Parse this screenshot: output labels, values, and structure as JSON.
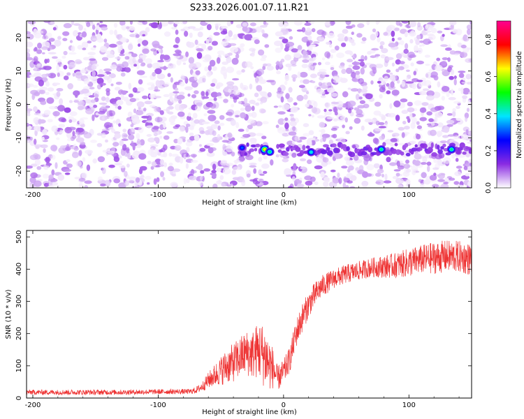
{
  "chart_data": [
    {
      "type": "heatmap",
      "title": "S233.2026.001.07.11.R21",
      "xlabel": "Height of straight line (km)",
      "ylabel": "Frequency (Hz)",
      "xlim": [
        -205,
        150
      ],
      "ylim": [
        -25,
        25
      ],
      "xticks": [
        -200,
        -100,
        0,
        100
      ],
      "xtick_labels": [
        "-200",
        "-100",
        "0",
        "100"
      ],
      "yticks": [
        20,
        10,
        0,
        -10,
        -20
      ],
      "ytick_labels": [
        "20",
        "10",
        "0",
        "-10",
        "-20"
      ],
      "colorbar": {
        "label": "Normalized spectral amplitude",
        "range": [
          0.0,
          0.9
        ],
        "ticks": [
          0.0,
          0.2,
          0.4,
          0.6,
          0.8
        ],
        "tick_labels": [
          "0.0",
          "0.2",
          "0.4",
          "0.6",
          "0.8"
        ],
        "colors": [
          "#ffffff",
          "#8a2be2",
          "#0000ff",
          "#00e5ff",
          "#00ff00",
          "#ffff00",
          "#ff0000",
          "#ff0090"
        ]
      },
      "band": {
        "frequency": -13.5,
        "x_start": -35,
        "x_end": 150,
        "amplitude": 0.1
      },
      "gap": {
        "x_start": -14,
        "x_end": -5
      },
      "peaks": [
        {
          "x": -33,
          "y": -13.0,
          "amplitude": 0.3
        },
        {
          "x": -15,
          "y": -13.5,
          "amplitude": 0.65
        },
        {
          "x": -11,
          "y": -14.2,
          "amplitude": 0.45
        },
        {
          "x": 22,
          "y": -14.3,
          "amplitude": 0.4
        },
        {
          "x": 78,
          "y": -13.5,
          "amplitude": 0.45
        },
        {
          "x": 134,
          "y": -13.5,
          "amplitude": 0.45
        }
      ]
    },
    {
      "type": "line",
      "xlabel": "Height of straight line (km)",
      "ylabel": "SNR (10 * v/v)",
      "xlim": [
        -205,
        150
      ],
      "ylim": [
        0,
        520
      ],
      "xticks": [
        -200,
        -100,
        0,
        100
      ],
      "xtick_labels": [
        "-200",
        "-100",
        "0",
        "100"
      ],
      "yticks": [
        0,
        100,
        200,
        300,
        400,
        500
      ],
      "ytick_labels": [
        "0",
        "100",
        "200",
        "300",
        "400",
        "500"
      ],
      "series": [
        {
          "name": "SNR",
          "color": "#ee3333",
          "x": [
            -205,
            -190,
            -170,
            -150,
            -130,
            -110,
            -90,
            -75,
            -70,
            -65,
            -60,
            -55,
            -50,
            -45,
            -40,
            -35,
            -30,
            -25,
            -20,
            -15,
            -12,
            -8,
            -5,
            0,
            5,
            10,
            15,
            20,
            25,
            30,
            40,
            50,
            60,
            70,
            80,
            90,
            100,
            110,
            120,
            130,
            140,
            150
          ],
          "values": [
            18,
            18,
            18,
            18,
            18,
            19,
            20,
            20,
            24,
            35,
            55,
            70,
            85,
            100,
            110,
            125,
            140,
            135,
            150,
            130,
            110,
            90,
            60,
            80,
            120,
            200,
            250,
            290,
            320,
            345,
            370,
            385,
            395,
            405,
            408,
            412,
            420,
            430,
            435,
            440,
            438,
            430
          ],
          "noise": [
            8,
            8,
            8,
            8,
            8,
            8,
            8,
            8,
            10,
            15,
            25,
            35,
            45,
            55,
            60,
            65,
            70,
            75,
            90,
            100,
            90,
            60,
            40,
            40,
            40,
            45,
            45,
            40,
            40,
            35,
            30,
            30,
            30,
            30,
            35,
            40,
            45,
            45,
            50,
            50,
            50,
            50
          ]
        }
      ]
    }
  ]
}
